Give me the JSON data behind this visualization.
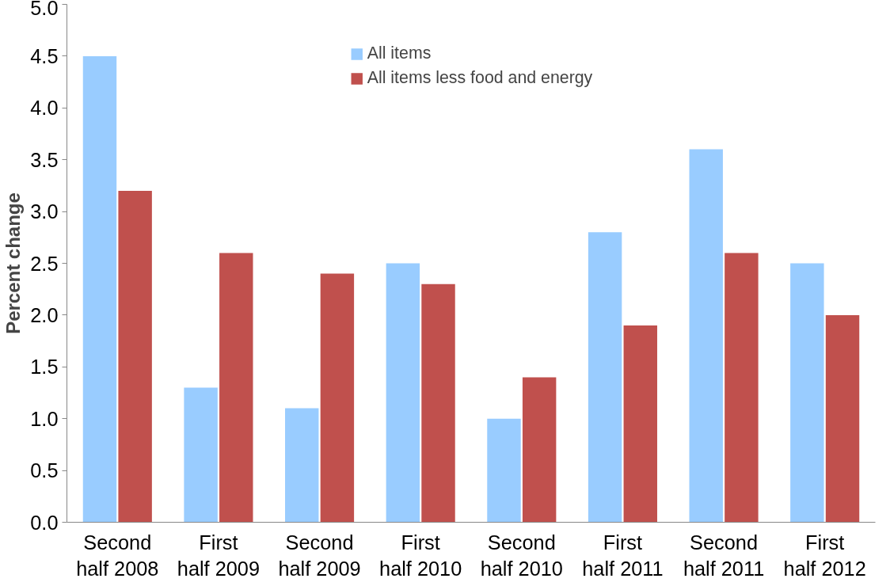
{
  "chart_data": {
    "type": "bar",
    "ylabel": "Percent change",
    "categories": [
      "Second half 2008",
      "First half 2009",
      "Second half 2009",
      "First half 2010",
      "Second half 2010",
      "First half 2011",
      "Second half 2011",
      "First half 2012"
    ],
    "series": [
      {
        "name": "All items",
        "color": "#99ccff",
        "values": [
          4.5,
          1.3,
          1.1,
          2.5,
          1.0,
          2.8,
          3.6,
          2.5
        ]
      },
      {
        "name": "All items less food and energy",
        "color": "#c0504d",
        "values": [
          3.2,
          2.6,
          2.4,
          2.3,
          1.4,
          1.9,
          2.6,
          2.0
        ]
      }
    ],
    "ylim": [
      0,
      5
    ],
    "yticks": [
      {
        "value": 0,
        "label": "0.0"
      },
      {
        "value": 0.5,
        "label": "0.5"
      },
      {
        "value": 1,
        "label": "1.0"
      },
      {
        "value": 1.5,
        "label": "1.5"
      },
      {
        "value": 2,
        "label": "2.0"
      },
      {
        "value": 2.5,
        "label": "2.5"
      },
      {
        "value": 3,
        "label": "3.0"
      },
      {
        "value": 3.5,
        "label": "3.5"
      },
      {
        "value": 4,
        "label": "4.0"
      },
      {
        "value": 4.5,
        "label": "4.5"
      },
      {
        "value": 5,
        "label": "5.0"
      }
    ],
    "grid": false,
    "legend": "top"
  }
}
